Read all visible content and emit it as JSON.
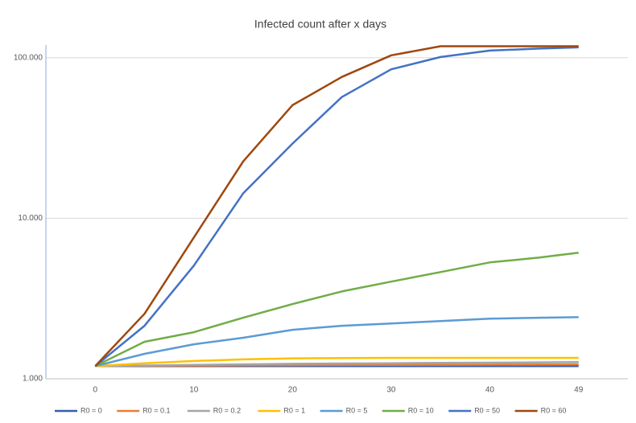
{
  "chart_data": {
    "type": "line",
    "title": "Infected count after x days",
    "x": [
      0,
      5,
      10,
      15,
      20,
      25,
      30,
      35,
      40,
      45,
      49
    ],
    "xlim": [
      -5,
      54
    ],
    "xticks": [
      0,
      10,
      20,
      30,
      40,
      49
    ],
    "log_y": true,
    "ylim": [
      1000,
      120000
    ],
    "yticks": [
      {
        "value": 1000,
        "label": "1.000"
      },
      {
        "value": 10000,
        "label": "10.000"
      },
      {
        "value": 100000,
        "label": "100.000"
      }
    ],
    "grid": true,
    "legend": "bottom",
    "series": [
      {
        "name": "R0 = 0",
        "color": "#3a5ea8",
        "values": [
          1200,
          1200,
          1200,
          1200,
          1200,
          1200,
          1200,
          1200,
          1200,
          1200,
          1200
        ]
      },
      {
        "name": "R0 = 0.1",
        "color": "#ed7d31",
        "values": [
          1200,
          1205,
          1210,
          1212,
          1215,
          1218,
          1220,
          1222,
          1225,
          1228,
          1230
        ]
      },
      {
        "name": "R0 = 0.2",
        "color": "#a5a5a5",
        "values": [
          1200,
          1210,
          1220,
          1230,
          1240,
          1245,
          1250,
          1255,
          1260,
          1265,
          1270
        ]
      },
      {
        "name": "R0 = 1",
        "color": "#ffc000",
        "values": [
          1200,
          1250,
          1290,
          1320,
          1340,
          1345,
          1350,
          1350,
          1350,
          1350,
          1350
        ]
      },
      {
        "name": "R0 = 5",
        "color": "#5b9bd5",
        "values": [
          1200,
          1430,
          1640,
          1800,
          2020,
          2140,
          2210,
          2290,
          2370,
          2400,
          2420
        ]
      },
      {
        "name": "R0 = 10",
        "color": "#70ad47",
        "values": [
          1200,
          1700,
          1950,
          2400,
          2920,
          3500,
          4030,
          4620,
          5310,
          5690,
          6100
        ]
      },
      {
        "name": "R0 = 50",
        "color": "#4472c4",
        "values": [
          1200,
          2140,
          5070,
          14300,
          29200,
          56900,
          84700,
          101000,
          110800,
          114000,
          116000
        ]
      },
      {
        "name": "R0 = 60",
        "color": "#9e480e",
        "values": [
          1200,
          2540,
          7590,
          22600,
          50700,
          75900,
          103500,
          118000,
          118000,
          118000,
          118000
        ]
      }
    ]
  }
}
